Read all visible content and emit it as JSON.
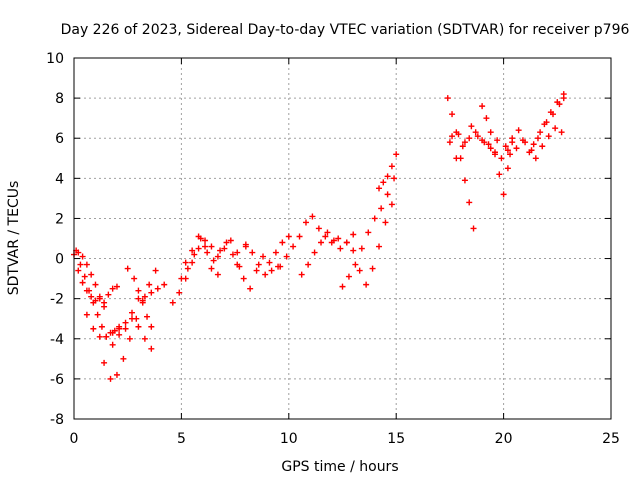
{
  "chart_data": {
    "type": "scatter",
    "title": "Day 226 of 2023, Sidereal Day-to-day VTEC variation (SDTVAR) for receiver p796",
    "xlabel": "GPS time / hours",
    "ylabel": "SDTVAR / TECUs",
    "xlim": [
      0,
      25
    ],
    "ylim": [
      -8,
      10
    ],
    "x_ticks": [
      "0",
      "5",
      "10",
      "15",
      "20",
      "25"
    ],
    "y_ticks": [
      "-8",
      "-6",
      "-4",
      "-2",
      "0",
      "2",
      "4",
      "6",
      "8",
      "10"
    ],
    "grid": true,
    "marker": "plus",
    "color": "#ff0000",
    "series": [
      {
        "name": "trace-1",
        "x": [
          0.0,
          0.2,
          0.4,
          0.6,
          0.8,
          1.0,
          1.2,
          1.4,
          1.6,
          1.8,
          2.0
        ],
        "y": [
          0.2,
          -0.6,
          -1.2,
          -1.6,
          -1.9,
          -2.1,
          -2.0,
          -2.2,
          -1.8,
          -1.5,
          -1.4
        ]
      },
      {
        "name": "trace-2",
        "x": [
          0.1,
          0.3,
          0.5,
          0.7,
          0.9,
          1.1,
          1.3,
          1.5,
          1.7,
          1.9,
          2.1
        ],
        "y": [
          0.4,
          -0.3,
          -0.9,
          -1.6,
          -2.2,
          -2.8,
          -3.4,
          -3.9,
          -3.7,
          -3.6,
          -3.4
        ]
      },
      {
        "name": "trace-3",
        "x": [
          0.2,
          0.4,
          0.6,
          0.8,
          1.0,
          1.2,
          1.4
        ],
        "y": [
          0.3,
          0.1,
          -0.3,
          -0.8,
          -1.3,
          -1.9,
          -2.4
        ]
      },
      {
        "name": "trace-4",
        "x": [
          0.6,
          0.9,
          1.2,
          1.5,
          1.8,
          2.1,
          2.4,
          2.7,
          3.0,
          3.3,
          3.6
        ],
        "y": [
          -2.8,
          -3.5,
          -3.9,
          -3.9,
          -3.7,
          -3.5,
          -3.2,
          -3.0,
          -3.4,
          -4.0,
          -4.5
        ]
      },
      {
        "name": "trace-5",
        "x": [
          1.4,
          1.7,
          2.0,
          2.3,
          2.6,
          2.9,
          3.2,
          3.5,
          3.8
        ],
        "y": [
          -5.2,
          -6.0,
          -5.8,
          -5.0,
          -4.0,
          -3.0,
          -2.1,
          -1.3,
          -0.6
        ]
      },
      {
        "name": "trace-6",
        "x": [
          1.8,
          2.1,
          2.4,
          2.7,
          3.0,
          3.3,
          3.6,
          3.9,
          4.2
        ],
        "y": [
          -4.3,
          -3.8,
          -3.5,
          -2.7,
          -2.0,
          -1.9,
          -1.7,
          -1.5,
          -1.3
        ]
      },
      {
        "name": "trace-7",
        "x": [
          2.5,
          2.8,
          3.0,
          3.2,
          3.4,
          3.6
        ],
        "y": [
          -0.5,
          -1.0,
          -1.6,
          -2.2,
          -2.9,
          -3.4
        ]
      },
      {
        "name": "trace-8",
        "x": [
          4.6,
          4.9,
          5.2,
          5.5,
          5.8,
          6.1,
          6.4,
          6.7,
          7.0,
          7.3,
          7.6,
          8.0
        ],
        "y": [
          -2.2,
          -1.7,
          -1.0,
          -0.2,
          0.5,
          0.9,
          0.6,
          0.1,
          0.5,
          0.9,
          0.3,
          0.6
        ]
      },
      {
        "name": "trace-9",
        "x": [
          5.0,
          5.3,
          5.6,
          5.9,
          6.2,
          6.5,
          6.8,
          7.1,
          7.4,
          7.7
        ],
        "y": [
          -1.0,
          -0.5,
          0.2,
          1.0,
          0.3,
          -0.1,
          0.4,
          0.8,
          0.2,
          -0.4
        ]
      },
      {
        "name": "trace-10",
        "x": [
          5.2,
          5.5,
          5.8,
          6.1,
          6.4,
          6.7
        ],
        "y": [
          -0.2,
          0.4,
          1.1,
          0.6,
          -0.5,
          -0.8
        ]
      },
      {
        "name": "trace-11",
        "x": [
          7.6,
          7.9,
          8.2,
          8.5,
          8.8,
          9.1,
          9.4,
          9.7,
          10.0
        ],
        "y": [
          -0.3,
          -1.0,
          -1.5,
          -0.6,
          0.1,
          -0.2,
          0.3,
          0.8,
          1.1
        ]
      },
      {
        "name": "trace-12",
        "x": [
          8.0,
          8.3,
          8.6,
          8.9,
          9.2,
          9.5
        ],
        "y": [
          0.7,
          0.3,
          -0.3,
          -0.8,
          -0.6,
          -0.4
        ]
      },
      {
        "name": "trace-13",
        "x": [
          9.6,
          9.9,
          10.2,
          10.5,
          10.8,
          11.1,
          11.4,
          11.7,
          12.0,
          12.3
        ],
        "y": [
          -0.4,
          0.1,
          0.6,
          1.1,
          1.8,
          2.1,
          1.5,
          1.1,
          0.8,
          1.0
        ]
      },
      {
        "name": "trace-14",
        "x": [
          10.6,
          10.9,
          11.2,
          11.5,
          11.8,
          12.1,
          12.4,
          12.7,
          13.0
        ],
        "y": [
          -0.8,
          -0.3,
          0.3,
          0.8,
          1.3,
          0.9,
          0.5,
          0.8,
          1.2
        ]
      },
      {
        "name": "trace-15",
        "x": [
          12.5,
          12.8,
          13.1,
          13.4,
          13.7,
          14.0,
          14.3,
          14.6,
          14.9
        ],
        "y": [
          -1.4,
          -0.9,
          -0.3,
          0.5,
          1.3,
          2.0,
          2.5,
          3.2,
          4.0
        ]
      },
      {
        "name": "trace-16",
        "x": [
          12.7,
          13.0,
          13.3,
          13.6,
          13.9,
          14.2,
          14.5,
          14.8
        ],
        "y": [
          0.8,
          0.4,
          -0.6,
          -1.3,
          -0.5,
          0.6,
          1.8,
          2.7
        ]
      },
      {
        "name": "trace-17",
        "x": [
          14.2,
          14.4,
          14.6,
          14.8,
          15.0
        ],
        "y": [
          3.5,
          3.8,
          4.1,
          4.6,
          5.2
        ]
      },
      {
        "name": "trace-18",
        "x": [
          17.4,
          17.6,
          17.8,
          18.0,
          18.2,
          18.4,
          18.6
        ],
        "y": [
          8.0,
          7.2,
          6.3,
          5.0,
          3.9,
          2.8,
          1.5
        ]
      },
      {
        "name": "trace-19",
        "x": [
          17.5,
          17.8,
          18.1,
          18.4,
          18.7,
          19.0,
          19.3,
          19.6,
          19.9,
          20.2
        ],
        "y": [
          5.8,
          5.0,
          5.6,
          6.0,
          6.3,
          5.9,
          5.7,
          5.2,
          5.0,
          5.4
        ]
      },
      {
        "name": "trace-20",
        "x": [
          17.6,
          17.9,
          18.2,
          18.5,
          18.8,
          19.1,
          19.4,
          19.7
        ],
        "y": [
          6.1,
          6.2,
          5.8,
          6.6,
          6.1,
          5.8,
          5.5,
          5.9
        ]
      },
      {
        "name": "trace-21",
        "x": [
          19.0,
          19.2,
          19.4,
          19.6,
          19.8,
          20.0,
          20.2,
          20.4
        ],
        "y": [
          7.6,
          7.0,
          6.3,
          5.3,
          4.2,
          3.2,
          4.5,
          5.8
        ]
      },
      {
        "name": "trace-22",
        "x": [
          20.1,
          20.4,
          20.7,
          21.0,
          21.3,
          21.6,
          21.9,
          22.2,
          22.5,
          22.8
        ],
        "y": [
          5.6,
          6.0,
          6.4,
          5.8,
          5.4,
          6.0,
          6.7,
          7.3,
          7.8,
          8.2
        ]
      },
      {
        "name": "trace-23",
        "x": [
          20.3,
          20.6,
          20.9,
          21.2,
          21.5,
          21.8,
          22.1,
          22.4,
          22.7
        ],
        "y": [
          5.2,
          5.5,
          5.9,
          5.3,
          5.0,
          5.6,
          6.1,
          6.5,
          6.3
        ]
      },
      {
        "name": "trace-24",
        "x": [
          21.4,
          21.7,
          22.0,
          22.3,
          22.6,
          22.8
        ],
        "y": [
          5.7,
          6.3,
          6.8,
          7.2,
          7.7,
          8.0
        ]
      }
    ]
  }
}
